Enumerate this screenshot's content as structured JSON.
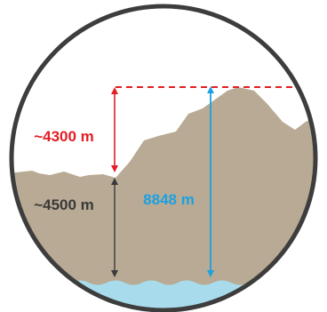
{
  "labels": {
    "summit_above_plateau": "~4300 m",
    "plateau_above_sea": "~4500 m",
    "total_height": "8848 m"
  },
  "colors": {
    "mountain": "#b8aa94",
    "sea": "#a8dcec",
    "red": "#e31e24",
    "blue": "#1ba1e2",
    "dark": "#3a3a3a",
    "ring": "#3d3d3d",
    "sky": "#ffffff"
  }
}
